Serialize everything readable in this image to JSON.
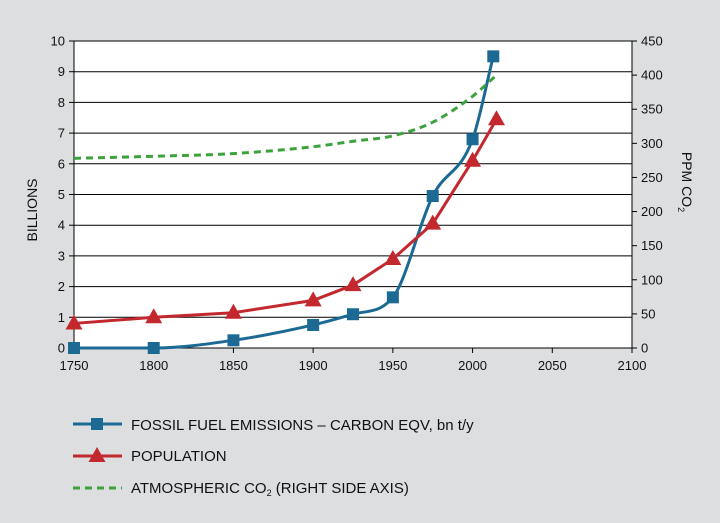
{
  "chart_data": {
    "type": "line",
    "x_axis": {
      "min": 1750,
      "max": 2100,
      "ticks": [
        1750,
        1800,
        1850,
        1900,
        1950,
        2000,
        2050,
        2100
      ]
    },
    "y_axis_left": {
      "label": "BILLIONS",
      "min": 0,
      "max": 10,
      "ticks": [
        0,
        1,
        2,
        3,
        4,
        5,
        6,
        7,
        8,
        9,
        10
      ]
    },
    "y_axis_right": {
      "label": "PPM CO",
      "label_subscript": "2",
      "min": 0,
      "max": 450,
      "ticks": [
        0,
        50,
        100,
        150,
        200,
        250,
        300,
        350,
        400,
        450
      ]
    },
    "grid": "horizontal",
    "series": [
      {
        "name": "FOSSIL FUEL EMISSIONS – CARBON EQV,  bn t/y",
        "color": "#1c6a94",
        "marker": "square",
        "axis": "left",
        "smooth": true,
        "points": [
          [
            1750,
            0.0
          ],
          [
            1800,
            0.0
          ],
          [
            1850,
            0.25
          ],
          [
            1900,
            0.75
          ],
          [
            1925,
            1.1
          ],
          [
            1950,
            1.65
          ],
          [
            1975,
            4.95
          ],
          [
            2000,
            6.8
          ],
          [
            2013,
            9.5
          ]
        ]
      },
      {
        "name": "POPULATION",
        "color": "#c3282e",
        "marker": "triangle",
        "axis": "left",
        "smooth": false,
        "points": [
          [
            1750,
            0.8
          ],
          [
            1800,
            1.0
          ],
          [
            1850,
            1.15
          ],
          [
            1900,
            1.55
          ],
          [
            1925,
            2.05
          ],
          [
            1950,
            2.9
          ],
          [
            1975,
            4.05
          ],
          [
            2000,
            6.1
          ],
          [
            2015,
            7.45
          ]
        ]
      },
      {
        "name": "ATMOSPHERIC CO",
        "name_subscript": "2",
        "name_suffix": " (RIGHT SIDE AXIS)",
        "color": "#3ca23c",
        "marker": "none",
        "dashed": true,
        "axis": "right",
        "smooth": true,
        "points": [
          [
            1750,
            278
          ],
          [
            1800,
            281
          ],
          [
            1850,
            285
          ],
          [
            1900,
            295
          ],
          [
            1925,
            303
          ],
          [
            1950,
            311
          ],
          [
            1975,
            331
          ],
          [
            2000,
            369
          ],
          [
            2015,
            400
          ]
        ]
      }
    ]
  }
}
